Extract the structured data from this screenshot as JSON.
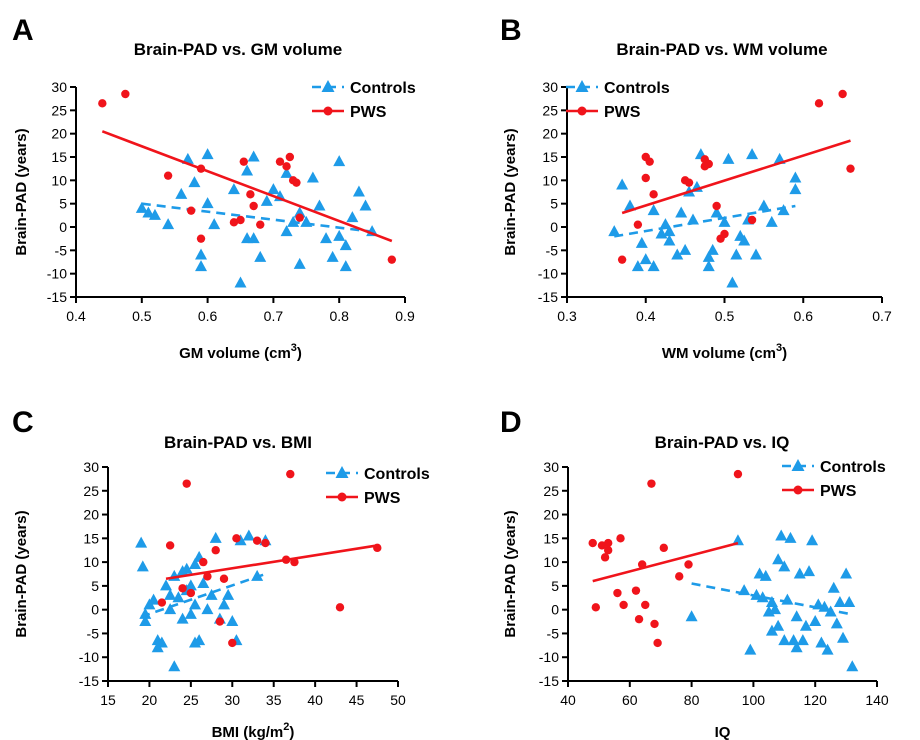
{
  "chart_data": [
    {
      "type": "scatter",
      "panel_letter": "A",
      "title": "Brain-PAD vs. GM volume",
      "xlabel": "GM volume (cm",
      "xlabel_sup": "3",
      "xlabel_end": ")",
      "ylabel": "Brain-PAD (years)",
      "xlim": [
        0.4,
        0.9
      ],
      "ylim": [
        -15,
        30
      ],
      "xticks": [
        0.4,
        0.5,
        0.6,
        0.7,
        0.8,
        0.9
      ],
      "xtick_labels": [
        "0.4",
        "0.5",
        "0.6",
        "0.7",
        "0.8",
        "0.9"
      ],
      "yticks": [
        -15,
        -10,
        -5,
        0,
        5,
        10,
        15,
        20,
        25,
        30
      ],
      "ytick_labels": [
        "-15",
        "-10",
        "-5",
        "0",
        "5",
        "10",
        "15",
        "20",
        "25",
        "30"
      ],
      "legend_position": "top-right",
      "series": [
        {
          "name": "Controls",
          "color": "#1E9BE8",
          "marker": "triangle",
          "line": "dashed",
          "x": [
            0.51,
            0.5,
            0.52,
            0.54,
            0.56,
            0.57,
            0.58,
            0.59,
            0.59,
            0.6,
            0.6,
            0.61,
            0.64,
            0.65,
            0.66,
            0.66,
            0.67,
            0.67,
            0.68,
            0.69,
            0.7,
            0.71,
            0.72,
            0.73,
            0.74,
            0.75,
            0.76,
            0.77,
            0.78,
            0.79,
            0.8,
            0.8,
            0.81,
            0.81,
            0.82,
            0.83,
            0.84,
            0.85,
            0.74,
            0.72
          ],
          "y": [
            3,
            4,
            2.5,
            0.5,
            7,
            14.5,
            9.5,
            -6,
            -8.5,
            15.5,
            5,
            0.5,
            8,
            -12,
            -2.5,
            12,
            15,
            -2.5,
            -6.5,
            5.5,
            8,
            6.5,
            11.5,
            1,
            3,
            1,
            10.5,
            4.5,
            -2.5,
            -6.5,
            14,
            -2,
            -8.5,
            -4,
            2,
            7.5,
            4.5,
            -1,
            -8,
            -1
          ],
          "fit": [
            [
              0.5,
              5
            ],
            [
              0.85,
              -1
            ]
          ]
        },
        {
          "name": "PWS",
          "color": "#F0141B",
          "marker": "circle",
          "line": "solid",
          "x": [
            0.44,
            0.475,
            0.54,
            0.575,
            0.59,
            0.59,
            0.64,
            0.655,
            0.665,
            0.67,
            0.68,
            0.71,
            0.72,
            0.725,
            0.73,
            0.735,
            0.65,
            0.74,
            0.88
          ],
          "y": [
            26.5,
            28.5,
            11,
            3.5,
            12.5,
            -2.5,
            1,
            14,
            7,
            4.5,
            0.5,
            14,
            13,
            15,
            10,
            9.5,
            1.5,
            2,
            -7
          ],
          "fit": [
            [
              0.44,
              20.5
            ],
            [
              0.88,
              -3
            ]
          ]
        }
      ]
    },
    {
      "type": "scatter",
      "panel_letter": "B",
      "title": "Brain-PAD vs. WM volume",
      "xlabel": "WM volume (cm",
      "xlabel_sup": "3",
      "xlabel_end": ")",
      "ylabel": "Brain-PAD (years)",
      "xlim": [
        0.3,
        0.7
      ],
      "ylim": [
        -15,
        30
      ],
      "xticks": [
        0.3,
        0.4,
        0.5,
        0.6,
        0.7
      ],
      "xtick_labels": [
        "0.3",
        "0.4",
        "0.5",
        "0.6",
        "0.7"
      ],
      "yticks": [
        -15,
        -10,
        -5,
        0,
        5,
        10,
        15,
        20,
        25,
        30
      ],
      "ytick_labels": [
        "-15",
        "-10",
        "-5",
        "0",
        "5",
        "10",
        "15",
        "20",
        "25",
        "30"
      ],
      "legend_position": "top-left",
      "series": [
        {
          "name": "Controls",
          "color": "#1E9BE8",
          "marker": "triangle",
          "line": "dashed",
          "x": [
            0.36,
            0.37,
            0.38,
            0.39,
            0.395,
            0.4,
            0.41,
            0.42,
            0.425,
            0.43,
            0.44,
            0.445,
            0.45,
            0.455,
            0.46,
            0.465,
            0.47,
            0.48,
            0.485,
            0.49,
            0.5,
            0.505,
            0.51,
            0.515,
            0.52,
            0.525,
            0.53,
            0.535,
            0.54,
            0.55,
            0.56,
            0.57,
            0.575,
            0.59,
            0.59,
            0.41,
            0.43,
            0.48
          ],
          "y": [
            -1,
            9,
            4.5,
            -8.5,
            -3.5,
            -7,
            3.5,
            -1.5,
            0.5,
            -3,
            -6,
            3,
            -5,
            7.5,
            1.5,
            8.5,
            15.5,
            -8.5,
            -5,
            3,
            1,
            14.5,
            -12,
            -6,
            -2,
            -3,
            1.5,
            15.5,
            -6,
            4.5,
            1,
            14.5,
            3.5,
            10.5,
            8,
            -8.5,
            -1,
            -6.5
          ],
          "fit": [
            [
              0.36,
              -2
            ],
            [
              0.59,
              4.5
            ]
          ]
        },
        {
          "name": "PWS",
          "color": "#F0141B",
          "marker": "circle",
          "line": "solid",
          "x": [
            0.37,
            0.39,
            0.4,
            0.405,
            0.41,
            0.45,
            0.455,
            0.475,
            0.48,
            0.49,
            0.495,
            0.5,
            0.535,
            0.62,
            0.65,
            0.66,
            0.475,
            0.4
          ],
          "y": [
            -7,
            0.5,
            15,
            14,
            7,
            10,
            9.5,
            14.5,
            13.5,
            4.5,
            -2.5,
            -1.5,
            1.5,
            26.5,
            28.5,
            12.5,
            13,
            10.5
          ],
          "fit": [
            [
              0.37,
              3
            ],
            [
              0.66,
              18.5
            ]
          ]
        }
      ]
    },
    {
      "type": "scatter",
      "panel_letter": "C",
      "title": "Brain-PAD vs. BMI",
      "xlabel": "BMI (kg/m",
      "xlabel_sup": "2",
      "xlabel_end": ")",
      "ylabel": "Brain-PAD (years)",
      "xlim": [
        15,
        50
      ],
      "ylim": [
        -15,
        30
      ],
      "xticks": [
        15,
        20,
        25,
        30,
        35,
        40,
        45,
        50
      ],
      "xtick_labels": [
        "15",
        "20",
        "25",
        "30",
        "35",
        "40",
        "45",
        "50"
      ],
      "yticks": [
        -15,
        -10,
        -5,
        0,
        5,
        10,
        15,
        20,
        25,
        30
      ],
      "ytick_labels": [
        "-15",
        "-10",
        "-5",
        "0",
        "5",
        "10",
        "15",
        "20",
        "25",
        "30"
      ],
      "legend_position": "top-right",
      "series": [
        {
          "name": "Controls",
          "color": "#1E9BE8",
          "marker": "triangle",
          "line": "dashed",
          "x": [
            19,
            19.2,
            19.5,
            20,
            20.5,
            21,
            21.5,
            22,
            22.5,
            23,
            23,
            23.5,
            24,
            24,
            24.5,
            25,
            25,
            25.5,
            25.5,
            26,
            26,
            26.5,
            27,
            27.5,
            28,
            28.5,
            29,
            29.5,
            30,
            30.5,
            31,
            32,
            33,
            34,
            19.5,
            21,
            22.5,
            24.5,
            25.5
          ],
          "y": [
            14,
            9,
            -2.5,
            1,
            2,
            -6.5,
            -7,
            5,
            0,
            -12,
            7,
            2.5,
            8,
            -2,
            4,
            5,
            -1,
            1,
            9.5,
            11,
            -6.5,
            5.5,
            0,
            3,
            15,
            -2,
            1,
            3,
            -2.5,
            -6.5,
            14.5,
            15.5,
            7,
            14.5,
            -1,
            -8,
            3,
            8.5,
            -7
          ],
          "fit": [
            [
              19,
              -1.5
            ],
            [
              34,
              7.5
            ]
          ]
        },
        {
          "name": "PWS",
          "color": "#F0141B",
          "marker": "circle",
          "line": "solid",
          "x": [
            21.5,
            22.5,
            24,
            24.5,
            25,
            26.5,
            27,
            28,
            29,
            30,
            30.5,
            33,
            34,
            36.5,
            37,
            37.5,
            43,
            47.5,
            28.5
          ],
          "y": [
            1.5,
            13.5,
            4.5,
            26.5,
            3.5,
            10,
            7,
            12.5,
            6.5,
            -7,
            15,
            14.5,
            14,
            10.5,
            28.5,
            10,
            0.5,
            13,
            -2.5
          ],
          "fit": [
            [
              22,
              6.5
            ],
            [
              47.5,
              13.5
            ]
          ]
        }
      ]
    },
    {
      "type": "scatter",
      "panel_letter": "D",
      "title": "Brain-PAD vs. IQ",
      "xlabel": "IQ",
      "xlabel_sup": "",
      "xlabel_end": "",
      "ylabel": "Brain-PAD (years)",
      "xlim": [
        40,
        140
      ],
      "ylim": [
        -15,
        30
      ],
      "xticks": [
        40,
        60,
        80,
        100,
        120,
        140
      ],
      "xtick_labels": [
        "40",
        "60",
        "80",
        "100",
        "120",
        "140"
      ],
      "yticks": [
        -15,
        -10,
        -5,
        0,
        5,
        10,
        15,
        20,
        25,
        30
      ],
      "ytick_labels": [
        "-15",
        "-10",
        "-5",
        "0",
        "5",
        "10",
        "15",
        "20",
        "25",
        "30"
      ],
      "legend_position": "top-right",
      "series": [
        {
          "name": "Controls",
          "color": "#1E9BE8",
          "marker": "triangle",
          "line": "dashed",
          "x": [
            80,
            95,
            97,
            99,
            101,
            102,
            103,
            104,
            105,
            106,
            107,
            108,
            108,
            109,
            110,
            110,
            111,
            112,
            113,
            114,
            115,
            116,
            117,
            118,
            119,
            120,
            121,
            122,
            123,
            124,
            125,
            126,
            127,
            128,
            129,
            130,
            131,
            132,
            106,
            114
          ],
          "y": [
            -1.5,
            14.5,
            4,
            -8.5,
            3,
            7.5,
            2.5,
            7,
            -0.5,
            1.5,
            0,
            -3.5,
            10.5,
            15.5,
            9,
            -6.5,
            2,
            15,
            -6.5,
            -1.5,
            7.5,
            -6.5,
            -3.5,
            8,
            14.5,
            -2.5,
            1,
            -7,
            0.5,
            -8.5,
            -0.5,
            4.5,
            -3,
            1.5,
            -6,
            7.5,
            1.5,
            -12,
            -4.5,
            -8
          ],
          "fit": [
            [
              80,
              5.5
            ],
            [
              132,
              -1
            ]
          ]
        },
        {
          "name": "PWS",
          "color": "#F0141B",
          "marker": "circle",
          "line": "solid",
          "x": [
            48,
            49,
            51,
            52,
            53,
            53,
            56,
            57,
            58,
            62,
            63,
            64,
            65,
            67,
            68,
            69,
            71,
            76,
            79,
            95
          ],
          "y": [
            14,
            0.5,
            13.5,
            11,
            12.5,
            14,
            3.5,
            15,
            1,
            4,
            -2,
            9.5,
            1,
            26.5,
            -3,
            -7,
            13,
            7,
            9.5,
            28.5
          ],
          "fit": [
            [
              48,
              6
            ],
            [
              95,
              14
            ]
          ]
        }
      ]
    }
  ]
}
